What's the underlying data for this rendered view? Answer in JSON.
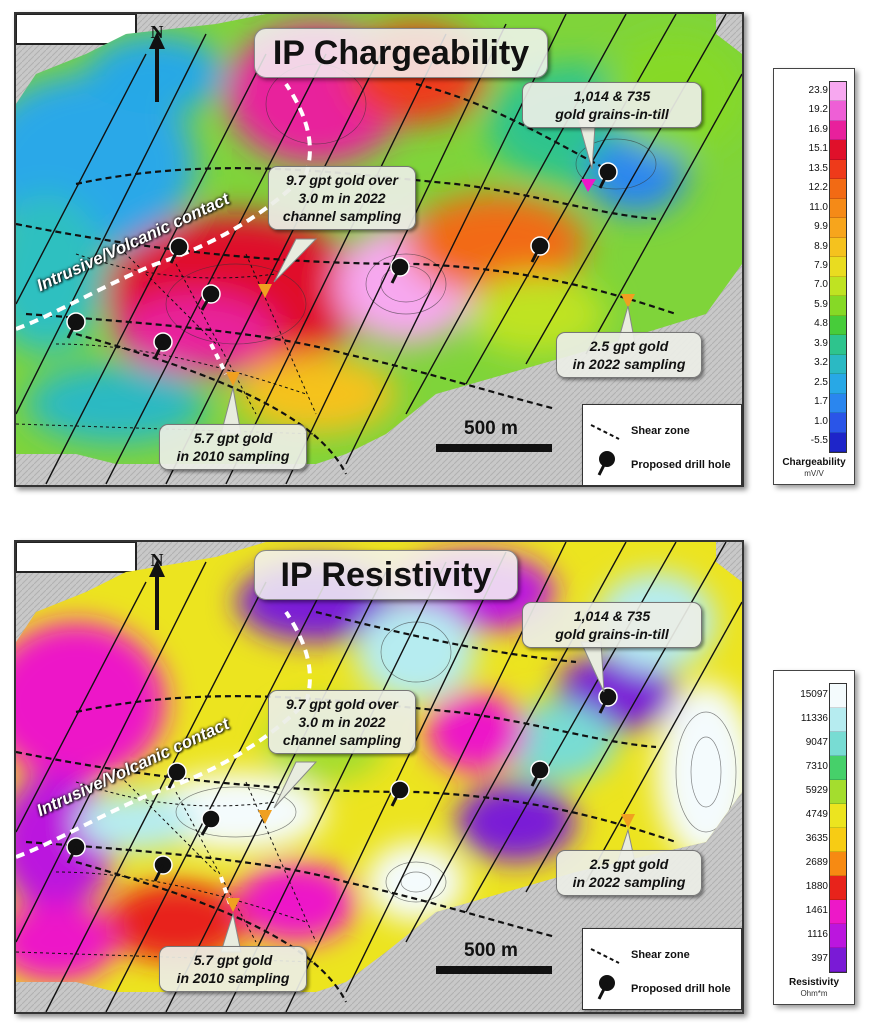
{
  "panels": [
    {
      "title": "IP Chargeability",
      "callouts": {
        "grains": [
          "1,014 & 735",
          "gold grains-in-till"
        ],
        "channel": [
          "9.7 gpt gold over",
          "3.0 m in 2022",
          "channel sampling"
        ],
        "g2022": [
          "2.5 gpt gold",
          "in 2022 sampling"
        ],
        "g2010": [
          "5.7 gpt gold",
          "in 2010 sampling"
        ]
      },
      "contact_label": "Intrusive/Volcanic contact",
      "scale_label": "500 m",
      "north_label": "N",
      "legend": {
        "shear": "Shear zone",
        "drill": "Proposed drill hole"
      }
    },
    {
      "title": "IP Resistivity",
      "callouts": {
        "grains": [
          "1,014 & 735",
          "gold grains-in-till"
        ],
        "channel": [
          "9.7 gpt gold over",
          "3.0 m in 2022",
          "channel sampling"
        ],
        "g2022": [
          "2.5 gpt gold",
          "in 2022 sampling"
        ],
        "g2010": [
          "5.7 gpt gold",
          "in 2010 sampling"
        ]
      },
      "contact_label": "Intrusive/Volcanic contact",
      "scale_label": "500 m",
      "north_label": "N",
      "legend": {
        "shear": "Shear zone",
        "drill": "Proposed drill hole"
      }
    }
  ],
  "colorbars": [
    {
      "title": "Chargeability",
      "unit": "mV/V",
      "labels": [
        "23.9",
        "19.2",
        "16.9",
        "15.1",
        "13.5",
        "12.2",
        "11.0",
        "9.9",
        "8.9",
        "7.9",
        "7.0",
        "5.9",
        "4.8",
        "3.9",
        "3.2",
        "2.5",
        "1.7",
        "1.0",
        "-5.5"
      ],
      "colors": [
        "#f7a8f0",
        "#ee5fd6",
        "#e8209c",
        "#e0102a",
        "#ee3a1a",
        "#f26a14",
        "#f58a17",
        "#f7a51c",
        "#f5c21e",
        "#e9dc20",
        "#bfe322",
        "#86d926",
        "#47cc3a",
        "#2ec48d",
        "#2bb9c3",
        "#28a8e6",
        "#2a86ef",
        "#2a55e8",
        "#1e25c9"
      ]
    },
    {
      "title": "Resistivity",
      "unit": "Ohm*m",
      "labels": [
        "15097",
        "11336",
        "9047",
        "7310",
        "5929",
        "4749",
        "3635",
        "2689",
        "1880",
        "1461",
        "1116",
        "397"
      ],
      "colors": [
        "#f4fbfd",
        "#b6ecf0",
        "#78dcd3",
        "#46d06a",
        "#a4dd2e",
        "#ece41f",
        "#f7cc14",
        "#f78a12",
        "#e8231b",
        "#ed18c8",
        "#bb16de",
        "#7a1ad6"
      ]
    }
  ]
}
